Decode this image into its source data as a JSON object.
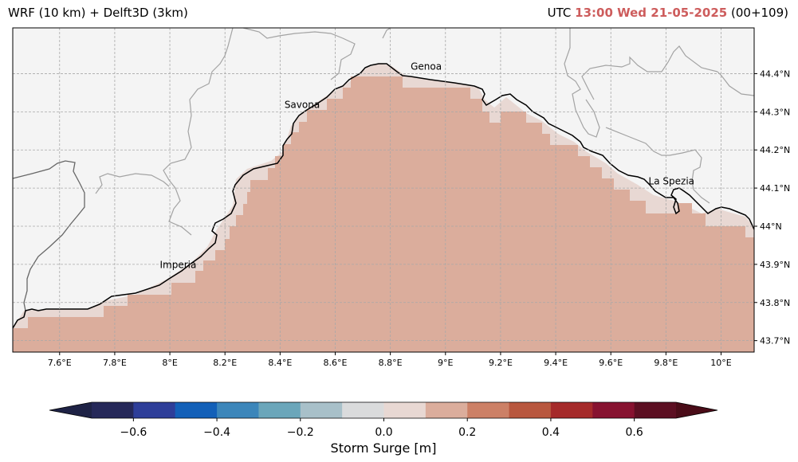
{
  "header": {
    "model_title": "WRF (10 km) + Delft3D (3km)",
    "utc_prefix": "UTC",
    "valid_time": "13:00 Wed 21-05-2025",
    "forecast_step": "(00+109)"
  },
  "map": {
    "lon_range": [
      7.43,
      10.12
    ],
    "lat_range": [
      43.67,
      44.52
    ],
    "lon_ticks": [
      {
        "value": 7.6,
        "label": "7.6°E"
      },
      {
        "value": 7.8,
        "label": "7.8°E"
      },
      {
        "value": 8.0,
        "label": "8°E"
      },
      {
        "value": 8.2,
        "label": "8.2°E"
      },
      {
        "value": 8.4,
        "label": "8.4°E"
      },
      {
        "value": 8.6,
        "label": "8.6°E"
      },
      {
        "value": 8.8,
        "label": "8.8°E"
      },
      {
        "value": 9.0,
        "label": "9°E"
      },
      {
        "value": 9.2,
        "label": "9.2°E"
      },
      {
        "value": 9.4,
        "label": "9.4°E"
      },
      {
        "value": 9.6,
        "label": "9.6°E"
      },
      {
        "value": 9.8,
        "label": "9.8°E"
      },
      {
        "value": 10.0,
        "label": "10°E"
      }
    ],
    "lat_ticks": [
      {
        "value": 43.7,
        "label": "43.7°N"
      },
      {
        "value": 43.8,
        "label": "43.8°N"
      },
      {
        "value": 43.9,
        "label": "43.9°N"
      },
      {
        "value": 44.0,
        "label": "44°N"
      },
      {
        "value": 44.1,
        "label": "44.1°N"
      },
      {
        "value": 44.2,
        "label": "44.2°N"
      },
      {
        "value": 44.3,
        "label": "44.3°N"
      },
      {
        "value": 44.4,
        "label": "44.4°N"
      }
    ],
    "cities": [
      {
        "name": "Genoa",
        "lon": 8.93,
        "lat": 44.41
      },
      {
        "name": "Savona",
        "lon": 8.48,
        "lat": 44.31
      },
      {
        "name": "Imperia",
        "lon": 8.03,
        "lat": 43.89
      },
      {
        "name": "La Spezia",
        "lon": 9.82,
        "lat": 44.11
      }
    ],
    "surge_field_note_values_m": {
      "inner_sea": 0.15,
      "coastal_fringe": 0.05
    },
    "colors": {
      "land": "#f4f4f4",
      "sea_main": "#dbad9c",
      "sea_fringe": "#e8d8d3",
      "coast": "#000000",
      "borders": "#a0a0a0"
    }
  },
  "colorbar": {
    "label": "Storm Surge [m]",
    "min": -0.7,
    "max": 0.7,
    "step": 0.1,
    "ticks": [
      {
        "value": -0.6,
        "label": "−0.6"
      },
      {
        "value": -0.4,
        "label": "−0.4"
      },
      {
        "value": -0.2,
        "label": "−0.2"
      },
      {
        "value": 0.0,
        "label": "0.0"
      },
      {
        "value": 0.2,
        "label": "0.2"
      },
      {
        "value": 0.4,
        "label": "0.4"
      },
      {
        "value": 0.6,
        "label": "0.6"
      }
    ],
    "colors": [
      "#252859",
      "#2e3e99",
      "#1360b8",
      "#3c86ba",
      "#6ba6ba",
      "#a8c0c9",
      "#dadbdc",
      "#e8d8d3",
      "#dbad9c",
      "#cc8066",
      "#b8573e",
      "#a52a2a",
      "#871230",
      "#5c0f22"
    ],
    "under_color": "#1e2245",
    "over_color": "#4a0c18"
  }
}
